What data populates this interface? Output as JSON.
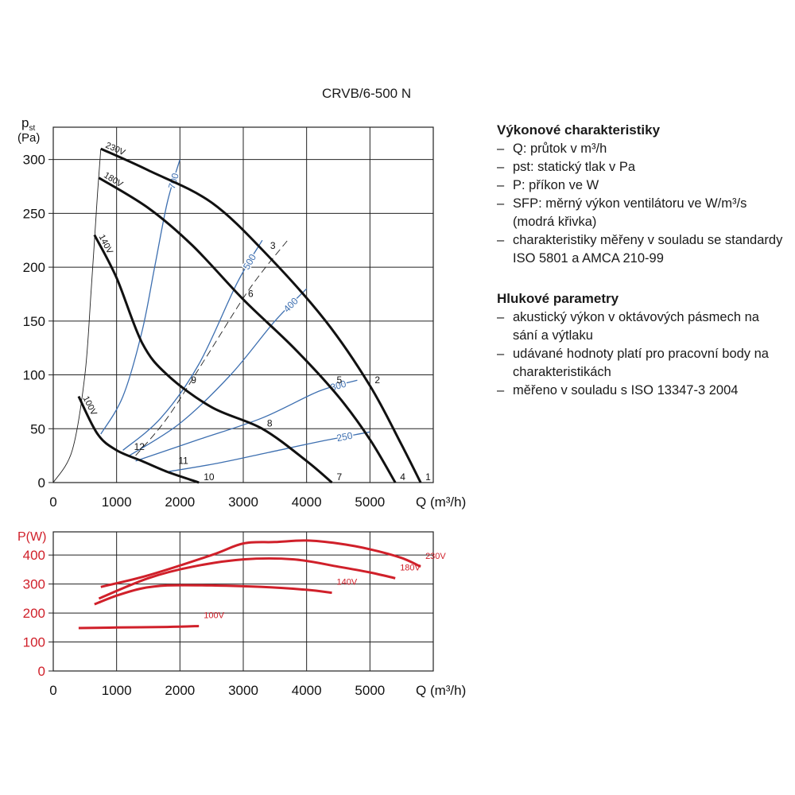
{
  "title": "CRVB/6-500 N",
  "performance": {
    "heading": "Výkonové charakteristiky",
    "items": [
      "Q: průtok v m³/h",
      "pst: statický tlak v Pa",
      "P: příkon ve W",
      "SFP: měrný výkon ventilátoru ve W/m³/s (modrá křivka)",
      "charakteristiky měřeny v souladu se standardy ISO 5801 a AMCA 210-99"
    ]
  },
  "noise": {
    "heading": "Hlukové parametry",
    "items": [
      "akustický výkon v oktávových pásmech na sání a výtlaku",
      "udávané hodnoty platí pro pracovní body na charakteristikách",
      "měřeno v souladu s ISO 13347-3 2004"
    ]
  },
  "colors": {
    "fan_curve": "#111111",
    "sfp_curve": "#3d6fb0",
    "power_curve": "#d0202a",
    "grid": "#222222"
  },
  "chart_data": [
    {
      "type": "line",
      "ylabel_line1": "p",
      "ylabel_sub": "st",
      "ylabel_line2": "(Pa)",
      "xlabel": "Q (m³/h)",
      "xlim": [
        0,
        6000
      ],
      "ylim": [
        0,
        330
      ],
      "xticks": [
        0,
        1000,
        2000,
        3000,
        4000,
        5000
      ],
      "yticks": [
        0,
        50,
        100,
        150,
        200,
        250,
        300
      ],
      "grid": true,
      "fan_curves": [
        {
          "name": "230V",
          "x": [
            750,
            1500,
            2500,
            3400,
            4300,
            5000,
            5500,
            5800
          ],
          "y": [
            310,
            290,
            260,
            210,
            150,
            90,
            35,
            0
          ]
        },
        {
          "name": "180V",
          "x": [
            720,
            1500,
            2200,
            3000,
            3800,
            4500,
            5000,
            5400
          ],
          "y": [
            283,
            255,
            220,
            170,
            125,
            80,
            40,
            0
          ]
        },
        {
          "name": "140V",
          "x": [
            650,
            1000,
            1400,
            1800,
            2500,
            3300,
            4000,
            4400
          ],
          "y": [
            230,
            190,
            130,
            100,
            70,
            50,
            20,
            0
          ]
        },
        {
          "name": "100V",
          "x": [
            400,
            700,
            1000,
            1400,
            1800,
            2200,
            2300
          ],
          "y": [
            80,
            45,
            30,
            20,
            10,
            2,
            0
          ]
        }
      ],
      "sfp_curves": [
        {
          "name": "700",
          "x": [
            750,
            1100,
            1400,
            1600,
            1800,
            2000
          ],
          "y": [
            45,
            80,
            140,
            200,
            260,
            300
          ]
        },
        {
          "name": "500",
          "x": [
            1100,
            1700,
            2300,
            2900,
            3300
          ],
          "y": [
            30,
            60,
            110,
            185,
            225
          ]
        },
        {
          "name": "400",
          "x": [
            1200,
            2000,
            2800,
            3500,
            4000
          ],
          "y": [
            25,
            55,
            100,
            150,
            180
          ]
        },
        {
          "name": "300",
          "x": [
            1300,
            2300,
            3300,
            4200,
            4800
          ],
          "y": [
            20,
            40,
            60,
            85,
            95
          ]
        },
        {
          "name": "250",
          "x": [
            1800,
            2600,
            3400,
            4200,
            5000
          ],
          "y": [
            10,
            18,
            28,
            38,
            47
          ]
        }
      ],
      "system_curves": [
        {
          "name": "outer-line",
          "style": "solid",
          "x": [
            0,
            300,
            500,
            600,
            700,
            750
          ],
          "y": [
            0,
            30,
            100,
            180,
            270,
            310
          ]
        },
        {
          "name": "diagonal",
          "style": "dashed",
          "x": [
            1300,
            1800,
            2400,
            3100,
            3700
          ],
          "y": [
            25,
            60,
            115,
            180,
            225
          ]
        }
      ],
      "operating_points": [
        {
          "label": "1",
          "x": 5800,
          "y": 0
        },
        {
          "label": "2",
          "x": 5000,
          "y": 90
        },
        {
          "label": "3",
          "x": 3350,
          "y": 215
        },
        {
          "label": "4",
          "x": 5400,
          "y": 0
        },
        {
          "label": "5",
          "x": 4400,
          "y": 90
        },
        {
          "label": "6",
          "x": 3000,
          "y": 170
        },
        {
          "label": "7",
          "x": 4400,
          "y": 0
        },
        {
          "label": "8",
          "x": 3300,
          "y": 50
        },
        {
          "label": "9",
          "x": 2100,
          "y": 90
        },
        {
          "label": "10",
          "x": 2300,
          "y": 0
        },
        {
          "label": "11",
          "x": 1900,
          "y": 15
        },
        {
          "label": "12",
          "x": 1200,
          "y": 28
        }
      ]
    },
    {
      "type": "line",
      "ylabel": "P(W)",
      "xlabel": "Q (m³/h)",
      "xlim": [
        0,
        6000
      ],
      "ylim": [
        0,
        480
      ],
      "xticks": [
        0,
        1000,
        2000,
        3000,
        4000,
        5000
      ],
      "yticks": [
        0,
        100,
        200,
        300,
        400
      ],
      "grid": true,
      "series": [
        {
          "name": "230V",
          "x": [
            750,
            1500,
            2500,
            3000,
            3500,
            4000,
            4500,
            5000,
            5500,
            5800
          ],
          "y": [
            290,
            330,
            400,
            440,
            445,
            450,
            440,
            420,
            390,
            360
          ]
        },
        {
          "name": "180V",
          "x": [
            720,
            1500,
            2200,
            3000,
            3800,
            4500,
            5000,
            5400
          ],
          "y": [
            250,
            320,
            360,
            385,
            385,
            360,
            340,
            320
          ]
        },
        {
          "name": "140V",
          "x": [
            650,
            1000,
            1400,
            1800,
            2500,
            3300,
            4000,
            4400
          ],
          "y": [
            230,
            260,
            285,
            295,
            295,
            290,
            280,
            270
          ]
        },
        {
          "name": "100V",
          "x": [
            400,
            1000,
            1800,
            2300
          ],
          "y": [
            148,
            150,
            152,
            155
          ]
        }
      ]
    }
  ]
}
